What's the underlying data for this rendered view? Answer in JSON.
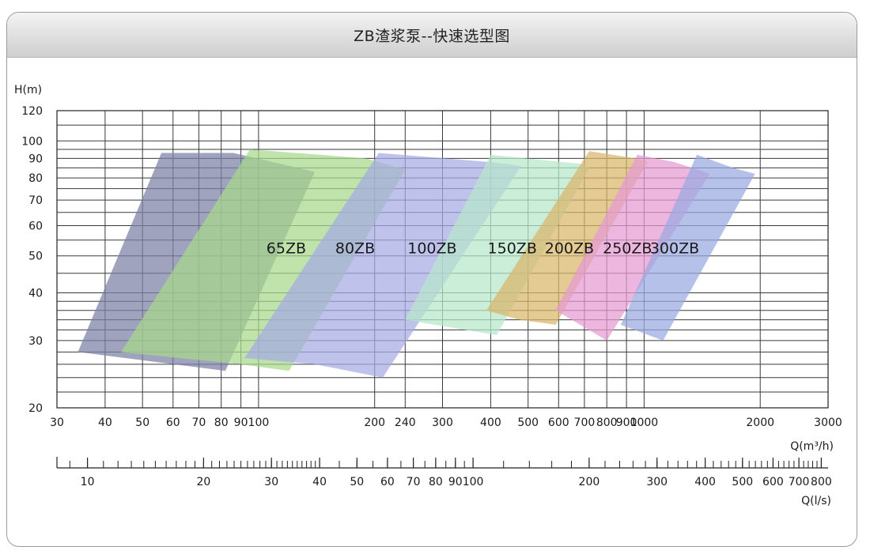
{
  "title": "ZB渣浆泵--快速选型图",
  "chart_data": {
    "type": "area",
    "title": "ZB渣浆泵--快速选型图",
    "x_scale": "log",
    "y_scale": "log",
    "xlabel": "Q(m³/h)",
    "ylabel": "H(m)",
    "xlim": [
      30,
      3000
    ],
    "ylim": [
      20,
      120
    ],
    "x_ticks": [
      "30",
      "40",
      "50",
      "60",
      "70",
      "80",
      "90",
      "100",
      "200",
      "240",
      "300",
      "400",
      "500",
      "600",
      "700",
      "800",
      "900",
      "1000",
      "2000",
      "3000"
    ],
    "y_ticks": [
      "20",
      "30",
      "40",
      "50",
      "60",
      "70",
      "80",
      "90",
      "100",
      "120"
    ],
    "secondary_axis": {
      "label": "Q(l/s)",
      "ticks": [
        "10",
        "20",
        "30",
        "40",
        "50",
        "60",
        "70",
        "80",
        "90",
        "100",
        "200",
        "300",
        "400",
        "500",
        "600",
        "700",
        "800"
      ]
    },
    "grid": true,
    "series": [
      {
        "name": "65ZB",
        "color": "#7c7fa5",
        "label_at": [
          118,
          52.5
        ],
        "outline": [
          [
            34,
            28
          ],
          [
            56,
            93
          ],
          [
            86,
            93
          ],
          [
            140,
            83
          ],
          [
            82,
            25
          ]
        ]
      },
      {
        "name": "80ZB",
        "color": "#a6d88a",
        "label_at": [
          178,
          52.5
        ],
        "outline": [
          [
            44,
            28
          ],
          [
            95,
            95
          ],
          [
            190,
            90
          ],
          [
            240,
            84
          ],
          [
            120,
            25
          ],
          [
            90,
            26
          ]
        ]
      },
      {
        "name": "100ZB",
        "color": "#a6aae3",
        "label_at": [
          282,
          52.5
        ],
        "outline": [
          [
            92,
            27
          ],
          [
            205,
            93
          ],
          [
            400,
            88
          ],
          [
            480,
            86
          ],
          [
            210,
            24
          ],
          [
            140,
            26
          ]
        ]
      },
      {
        "name": "150ZB",
        "color": "#b7e8cb",
        "label_at": [
          455,
          52.5
        ],
        "outline": [
          [
            240,
            34
          ],
          [
            400,
            92
          ],
          [
            690,
            87
          ],
          [
            720,
            85
          ],
          [
            415,
            31
          ]
        ]
      },
      {
        "name": "200ZB",
        "color": "#d9b66a",
        "label_at": [
          640,
          52.5
        ],
        "outline": [
          [
            390,
            36
          ],
          [
            720,
            94
          ],
          [
            950,
            90
          ],
          [
            1020,
            88
          ],
          [
            590,
            33
          ],
          [
            475,
            34
          ]
        ]
      },
      {
        "name": "250ZB",
        "color": "#e49ad2",
        "label_at": [
          905,
          52.5
        ],
        "outline": [
          [
            590,
            36
          ],
          [
            960,
            92
          ],
          [
            1200,
            88
          ],
          [
            1480,
            82
          ],
          [
            800,
            30
          ]
        ]
      },
      {
        "name": "300ZB",
        "color": "#9aa9e2",
        "label_at": [
          1200,
          52.5
        ],
        "outline": [
          [
            870,
            33
          ],
          [
            1370,
            92
          ],
          [
            1700,
            85
          ],
          [
            1940,
            82
          ],
          [
            1120,
            30
          ]
        ]
      }
    ]
  }
}
